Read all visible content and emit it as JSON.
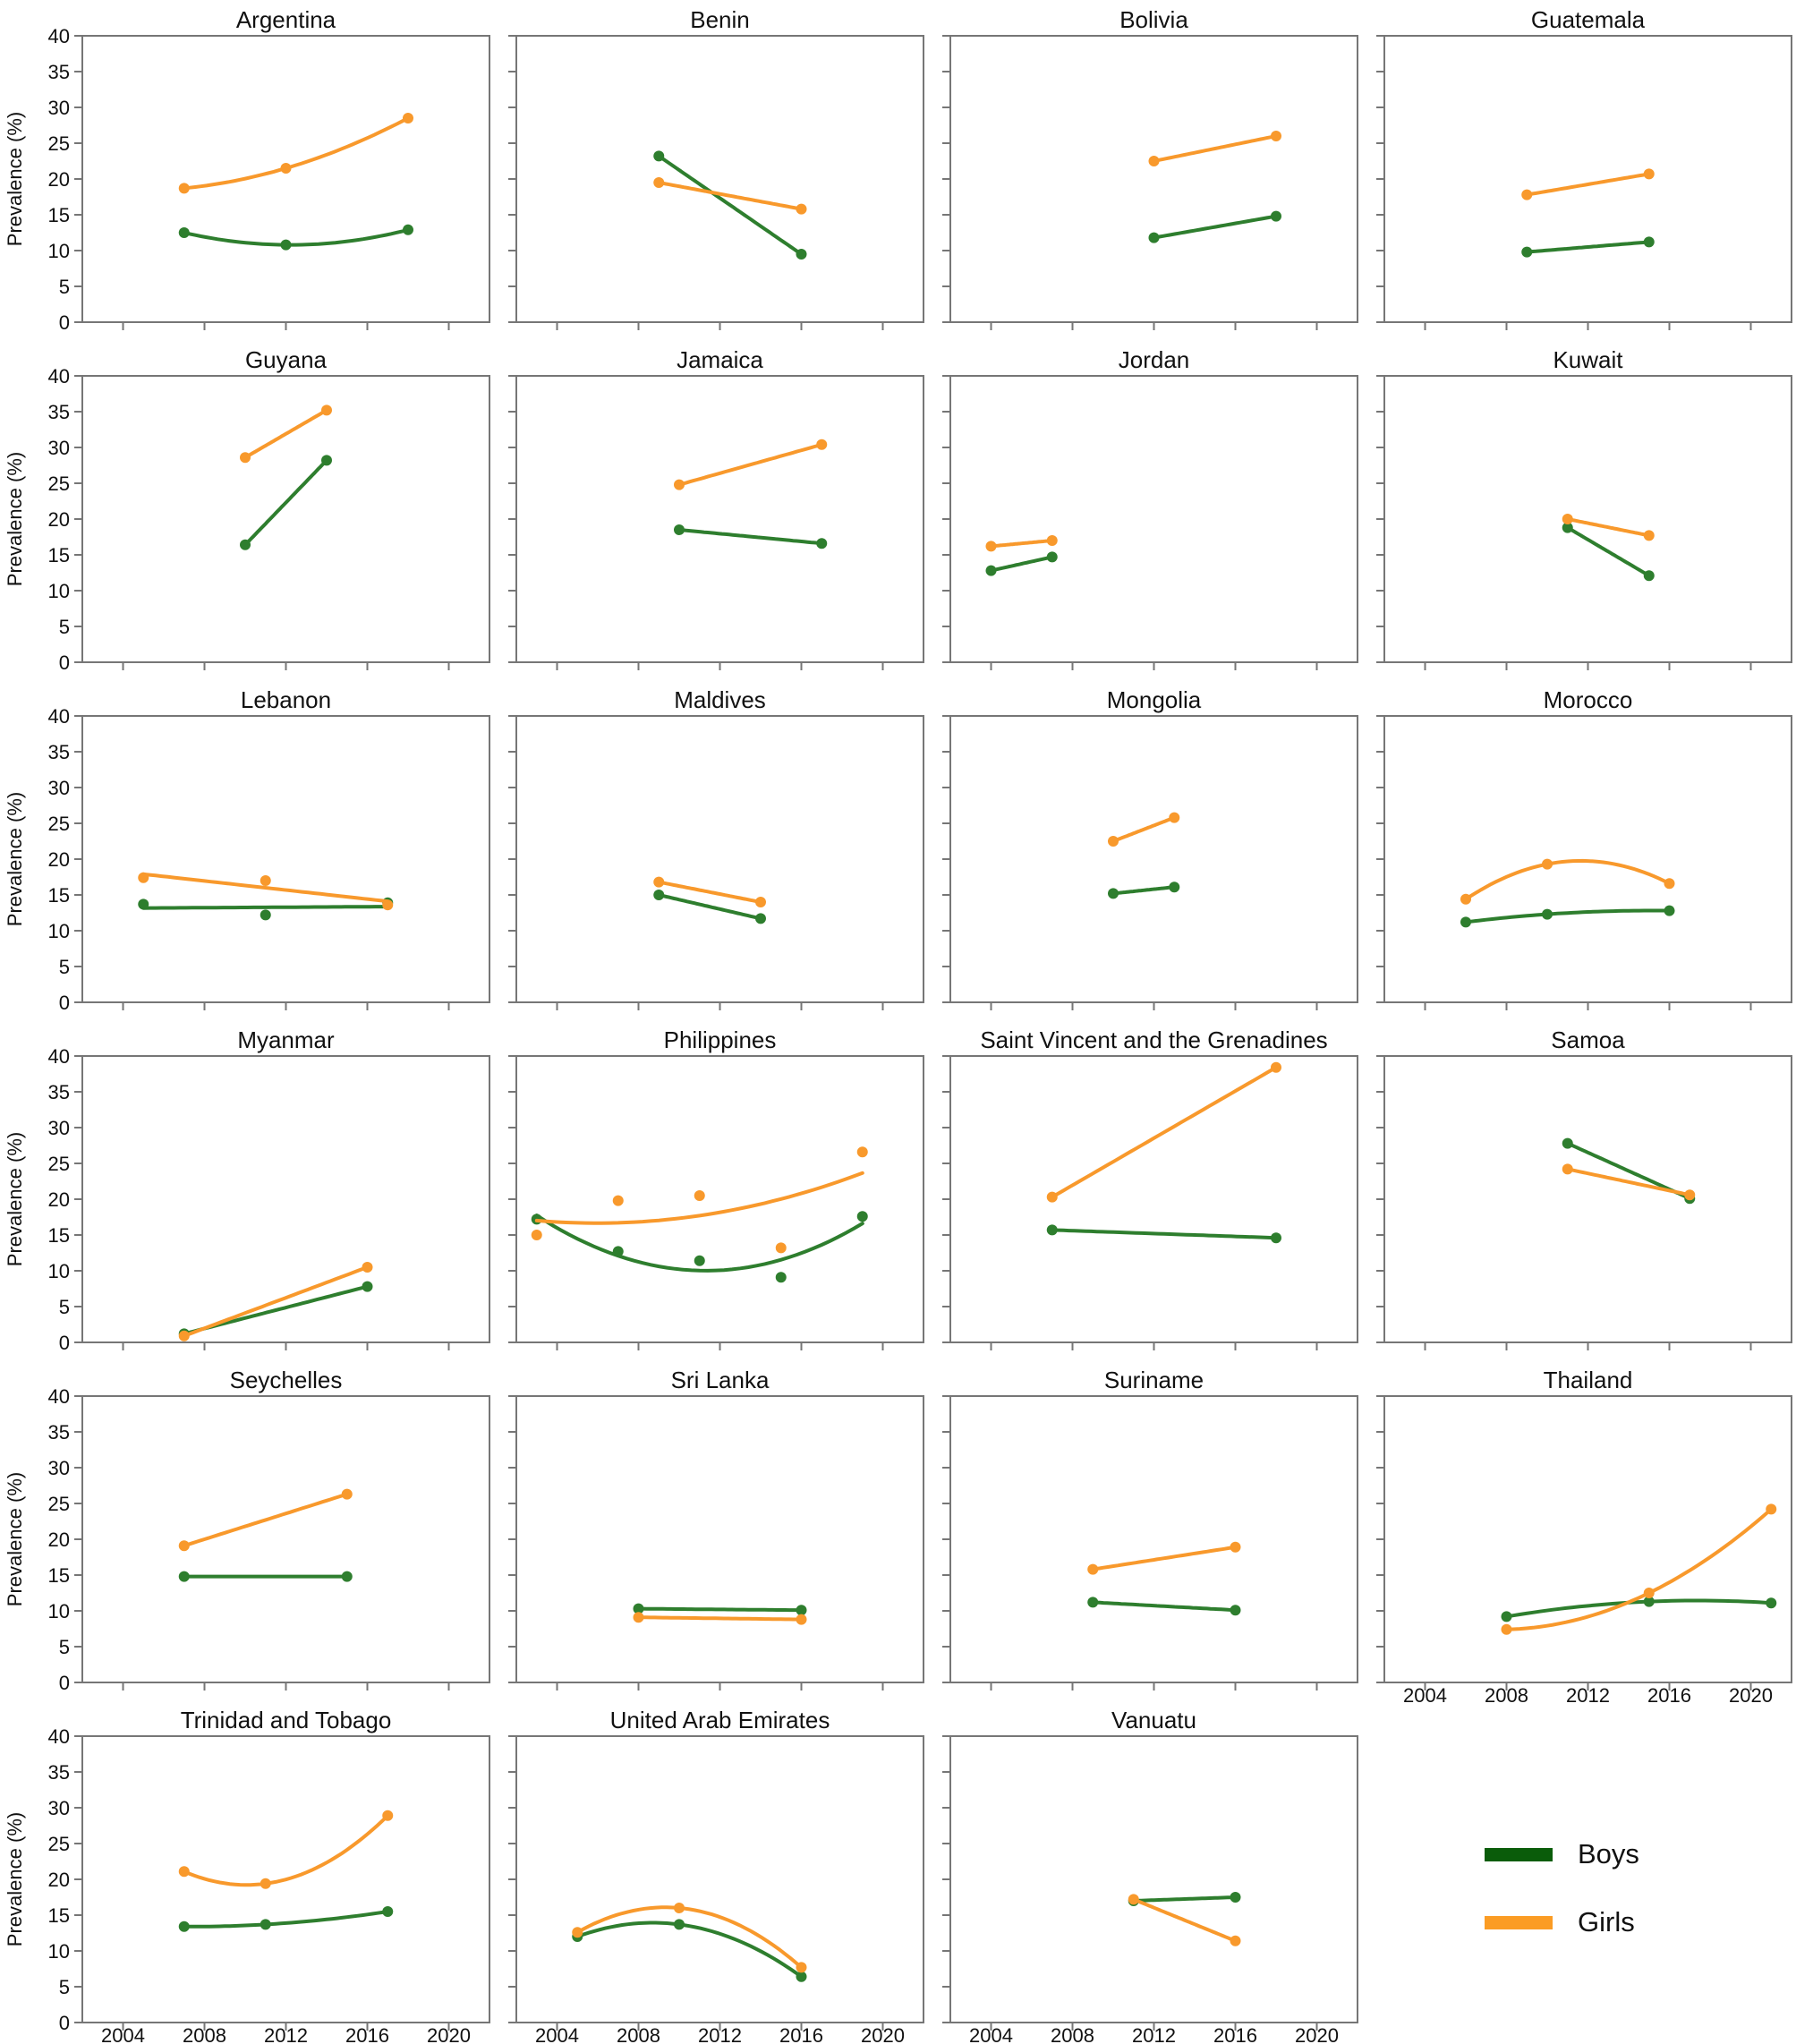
{
  "figure": {
    "y_axis_label": "Prevalence (%)",
    "x_range": [
      2002,
      2022
    ],
    "y_range": [
      0,
      40
    ],
    "x_ticks": [
      2004,
      2008,
      2012,
      2016,
      2020
    ],
    "y_ticks": [
      0,
      5,
      10,
      15,
      20,
      25,
      30,
      35,
      40
    ],
    "colors": {
      "boys_line": "#2e7e2e",
      "girls_line": "#f8992c",
      "legend_boys": "#0a5c0a",
      "legend_girls": "#fb9c24",
      "axis": "#767676",
      "text": "#111111"
    }
  },
  "legend": {
    "items": [
      {
        "name": "boys",
        "label": "Boys",
        "color": "#0a5c0a"
      },
      {
        "name": "girls",
        "label": "Girls",
        "color": "#fb9c24"
      }
    ]
  },
  "chart_data": [
    {
      "type": "line",
      "title": "Argentina",
      "row": 0,
      "col": 0,
      "show_y_labels": true,
      "show_x_labels": false,
      "years": [
        2007,
        2012,
        2018
      ],
      "series": [
        {
          "name": "Boys",
          "values": [
            12.5,
            10.8,
            12.9
          ]
        },
        {
          "name": "Girls",
          "values": [
            18.7,
            21.5,
            28.5
          ]
        }
      ]
    },
    {
      "type": "line",
      "title": "Benin",
      "row": 0,
      "col": 1,
      "show_y_labels": false,
      "show_x_labels": false,
      "years": [
        2009,
        2016
      ],
      "series": [
        {
          "name": "Boys",
          "values": [
            23.2,
            9.5
          ]
        },
        {
          "name": "Girls",
          "values": [
            19.5,
            15.8
          ]
        }
      ]
    },
    {
      "type": "line",
      "title": "Bolivia",
      "row": 0,
      "col": 2,
      "show_y_labels": false,
      "show_x_labels": false,
      "years": [
        2012,
        2018
      ],
      "series": [
        {
          "name": "Boys",
          "values": [
            11.8,
            14.8
          ]
        },
        {
          "name": "Girls",
          "values": [
            22.5,
            26.0
          ]
        }
      ]
    },
    {
      "type": "line",
      "title": "Guatemala",
      "row": 0,
      "col": 3,
      "show_y_labels": false,
      "show_x_labels": false,
      "years": [
        2009,
        2015
      ],
      "series": [
        {
          "name": "Boys",
          "values": [
            9.8,
            11.2
          ]
        },
        {
          "name": "Girls",
          "values": [
            17.8,
            20.7
          ]
        }
      ]
    },
    {
      "type": "line",
      "title": "Guyana",
      "row": 1,
      "col": 0,
      "show_y_labels": true,
      "show_x_labels": false,
      "years": [
        2010,
        2014
      ],
      "series": [
        {
          "name": "Boys",
          "values": [
            16.4,
            28.2
          ]
        },
        {
          "name": "Girls",
          "values": [
            28.6,
            35.2
          ]
        }
      ]
    },
    {
      "type": "line",
      "title": "Jamaica",
      "row": 1,
      "col": 1,
      "show_y_labels": false,
      "show_x_labels": false,
      "years": [
        2010,
        2017
      ],
      "series": [
        {
          "name": "Boys",
          "values": [
            18.5,
            16.6
          ]
        },
        {
          "name": "Girls",
          "values": [
            24.8,
            30.4
          ]
        }
      ]
    },
    {
      "type": "line",
      "title": "Jordan",
      "row": 1,
      "col": 2,
      "show_y_labels": false,
      "show_x_labels": false,
      "years": [
        2004,
        2007
      ],
      "series": [
        {
          "name": "Boys",
          "values": [
            12.8,
            14.7
          ]
        },
        {
          "name": "Girls",
          "values": [
            16.2,
            17.0
          ]
        }
      ]
    },
    {
      "type": "line",
      "title": "Kuwait",
      "row": 1,
      "col": 3,
      "show_y_labels": false,
      "show_x_labels": false,
      "years": [
        2011,
        2015
      ],
      "series": [
        {
          "name": "Boys",
          "values": [
            18.8,
            12.1
          ]
        },
        {
          "name": "Girls",
          "values": [
            20.0,
            17.7
          ]
        }
      ]
    },
    {
      "type": "line",
      "title": "Lebanon",
      "row": 2,
      "col": 0,
      "show_y_labels": true,
      "show_x_labels": false,
      "fit": "linear",
      "years": [
        2005,
        2011,
        2017
      ],
      "series": [
        {
          "name": "Boys",
          "values": [
            13.7,
            12.2,
            13.9
          ]
        },
        {
          "name": "Girls",
          "values": [
            17.4,
            17.0,
            13.6
          ]
        }
      ]
    },
    {
      "type": "line",
      "title": "Maldives",
      "row": 2,
      "col": 1,
      "show_y_labels": false,
      "show_x_labels": false,
      "years": [
        2009,
        2014
      ],
      "series": [
        {
          "name": "Boys",
          "values": [
            15.0,
            11.7
          ]
        },
        {
          "name": "Girls",
          "values": [
            16.8,
            14.0
          ]
        }
      ]
    },
    {
      "type": "line",
      "title": "Mongolia",
      "row": 2,
      "col": 2,
      "show_y_labels": false,
      "show_x_labels": false,
      "years": [
        2010,
        2013
      ],
      "series": [
        {
          "name": "Boys",
          "values": [
            15.2,
            16.1
          ]
        },
        {
          "name": "Girls",
          "values": [
            22.5,
            25.8
          ]
        }
      ]
    },
    {
      "type": "line",
      "title": "Morocco",
      "row": 2,
      "col": 3,
      "show_y_labels": false,
      "show_x_labels": false,
      "years": [
        2006,
        2010,
        2016
      ],
      "series": [
        {
          "name": "Boys",
          "values": [
            11.2,
            12.3,
            12.8
          ]
        },
        {
          "name": "Girls",
          "values": [
            14.4,
            19.3,
            16.6
          ]
        }
      ]
    },
    {
      "type": "line",
      "title": "Myanmar",
      "row": 3,
      "col": 0,
      "show_y_labels": true,
      "show_x_labels": false,
      "years": [
        2007,
        2016
      ],
      "series": [
        {
          "name": "Boys",
          "values": [
            1.2,
            7.8
          ]
        },
        {
          "name": "Girls",
          "values": [
            0.9,
            10.5
          ]
        }
      ]
    },
    {
      "type": "line",
      "title": "Philippines",
      "row": 3,
      "col": 1,
      "show_y_labels": false,
      "show_x_labels": false,
      "years": [
        2003,
        2007,
        2011,
        2015,
        2019
      ],
      "series": [
        {
          "name": "Boys",
          "values": [
            17.2,
            12.7,
            11.4,
            9.1,
            17.6
          ]
        },
        {
          "name": "Girls",
          "values": [
            15.0,
            19.8,
            20.5,
            13.2,
            26.6
          ]
        }
      ]
    },
    {
      "type": "line",
      "title": "Saint Vincent and the Grenadines",
      "row": 3,
      "col": 2,
      "show_y_labels": false,
      "show_x_labels": false,
      "years": [
        2007,
        2018
      ],
      "series": [
        {
          "name": "Boys",
          "values": [
            15.7,
            14.6
          ]
        },
        {
          "name": "Girls",
          "values": [
            20.3,
            38.4
          ]
        }
      ]
    },
    {
      "type": "line",
      "title": "Samoa",
      "row": 3,
      "col": 3,
      "show_y_labels": false,
      "show_x_labels": false,
      "years": [
        2011,
        2017
      ],
      "series": [
        {
          "name": "Boys",
          "values": [
            27.8,
            20.1
          ]
        },
        {
          "name": "Girls",
          "values": [
            24.2,
            20.6
          ]
        }
      ]
    },
    {
      "type": "line",
      "title": "Seychelles",
      "row": 4,
      "col": 0,
      "show_y_labels": true,
      "show_x_labels": false,
      "years": [
        2007,
        2015
      ],
      "series": [
        {
          "name": "Boys",
          "values": [
            14.8,
            14.8
          ]
        },
        {
          "name": "Girls",
          "values": [
            19.1,
            26.3
          ]
        }
      ]
    },
    {
      "type": "line",
      "title": "Sri Lanka",
      "row": 4,
      "col": 1,
      "show_y_labels": false,
      "show_x_labels": false,
      "years": [
        2008,
        2016
      ],
      "series": [
        {
          "name": "Boys",
          "values": [
            10.3,
            10.1
          ]
        },
        {
          "name": "Girls",
          "values": [
            9.1,
            8.8
          ]
        }
      ]
    },
    {
      "type": "line",
      "title": "Suriname",
      "row": 4,
      "col": 2,
      "show_y_labels": false,
      "show_x_labels": false,
      "years": [
        2009,
        2016
      ],
      "series": [
        {
          "name": "Boys",
          "values": [
            11.2,
            10.1
          ]
        },
        {
          "name": "Girls",
          "values": [
            15.8,
            18.9
          ]
        }
      ]
    },
    {
      "type": "line",
      "title": "Thailand",
      "row": 4,
      "col": 3,
      "show_y_labels": false,
      "show_x_labels": true,
      "years": [
        2008,
        2015,
        2021
      ],
      "series": [
        {
          "name": "Boys",
          "values": [
            9.2,
            11.3,
            11.1
          ]
        },
        {
          "name": "Girls",
          "values": [
            7.4,
            12.5,
            24.2
          ]
        }
      ]
    },
    {
      "type": "line",
      "title": "Trinidad and Tobago",
      "row": 5,
      "col": 0,
      "show_y_labels": true,
      "show_x_labels": true,
      "years": [
        2007,
        2011,
        2017
      ],
      "series": [
        {
          "name": "Boys",
          "values": [
            13.4,
            13.7,
            15.5
          ]
        },
        {
          "name": "Girls",
          "values": [
            21.1,
            19.4,
            28.9
          ]
        }
      ]
    },
    {
      "type": "line",
      "title": "United Arab Emirates",
      "row": 5,
      "col": 1,
      "show_y_labels": false,
      "show_x_labels": true,
      "years": [
        2005,
        2010,
        2016
      ],
      "series": [
        {
          "name": "Boys",
          "values": [
            12.0,
            13.7,
            6.4
          ]
        },
        {
          "name": "Girls",
          "values": [
            12.6,
            16.0,
            7.7
          ]
        }
      ]
    },
    {
      "type": "line",
      "title": "Vanuatu",
      "row": 5,
      "col": 2,
      "show_y_labels": false,
      "show_x_labels": true,
      "years": [
        2011,
        2016
      ],
      "series": [
        {
          "name": "Boys",
          "values": [
            17.0,
            17.5
          ]
        },
        {
          "name": "Girls",
          "values": [
            17.2,
            11.4
          ]
        }
      ]
    }
  ]
}
